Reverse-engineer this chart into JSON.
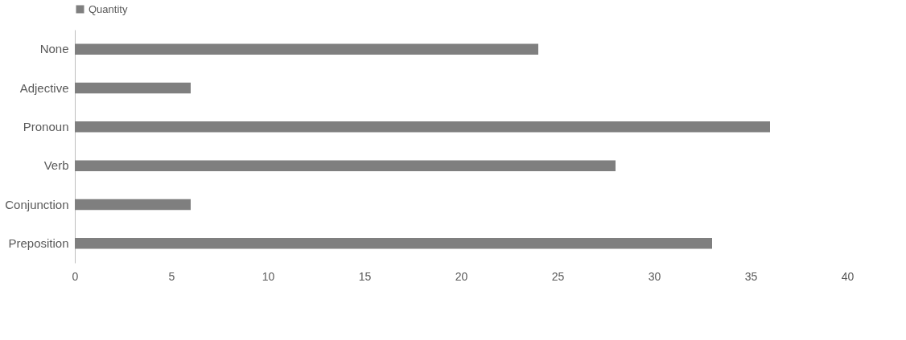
{
  "chart_data": {
    "type": "bar",
    "orientation": "horizontal",
    "categories": [
      "None",
      "Adjective",
      "Pronoun",
      "Verb",
      "Conjunction",
      "Preposition"
    ],
    "series": [
      {
        "name": "Quantity",
        "color": "#7f7f7f",
        "values": [
          24,
          6,
          36,
          28,
          6,
          33
        ]
      }
    ],
    "xlim": [
      0,
      40
    ],
    "xticks": [
      0,
      5,
      10,
      15,
      20,
      25,
      30,
      35,
      40
    ],
    "grid": false,
    "legend": "top"
  }
}
